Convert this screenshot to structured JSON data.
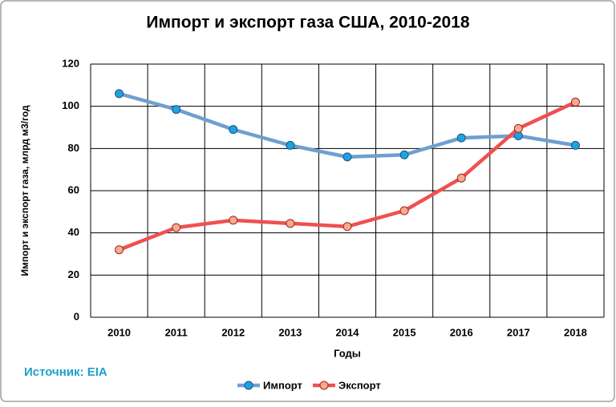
{
  "chart_data": {
    "type": "line",
    "title": "Импорт и экспорт газа США, 2010-2018",
    "x_label": "Годы",
    "y_label": "Импорт и экспорт газа, млрд м3/год",
    "source": "Источник: EIA",
    "categories": [
      "2010",
      "2011",
      "2012",
      "2013",
      "2014",
      "2015",
      "2016",
      "2017",
      "2018"
    ],
    "series": [
      {
        "name": "Импорт",
        "color": "#6f9fd0",
        "marker_color": "#1ea3e2",
        "values": [
          106,
          98.5,
          89,
          81.5,
          76,
          77,
          85,
          86,
          81.5
        ]
      },
      {
        "name": "Экспорт",
        "color": "#f05050",
        "marker_color": "#f8aa8c",
        "values": [
          32,
          42.5,
          46,
          44.5,
          43,
          50.5,
          66,
          89.5,
          102
        ]
      }
    ],
    "ylim": [
      0,
      120
    ],
    "yticks": [
      0,
      20,
      40,
      60,
      80,
      100,
      120
    ],
    "grid": true,
    "legend": "bottom"
  }
}
